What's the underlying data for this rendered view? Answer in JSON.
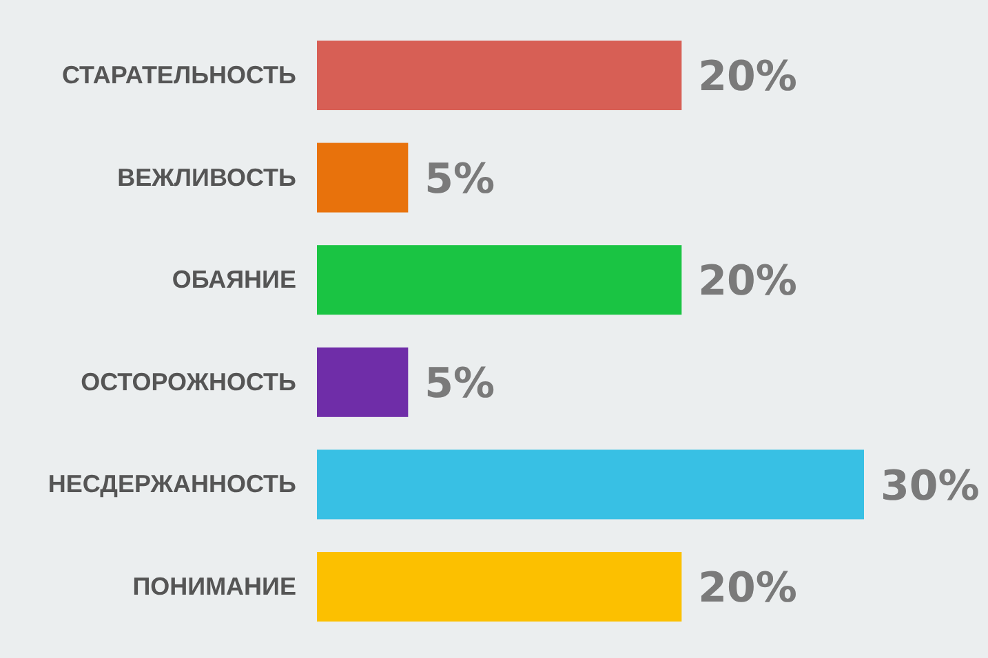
{
  "chart_data": {
    "type": "bar",
    "orientation": "horizontal",
    "categories": [
      "СТАРАТЕЛЬНОСТЬ",
      "ВЕЖЛИВОСТЬ",
      "ОБАЯНИЕ",
      "ОСТОРОЖНОСТЬ",
      "НЕСДЕРЖАННОСТЬ",
      "ПОНИМАНИЕ"
    ],
    "values": [
      20,
      5,
      20,
      5,
      30,
      20
    ],
    "colors": [
      "#d75f55",
      "#e8720c",
      "#1ac443",
      "#6f2da8",
      "#38c0e4",
      "#fcc000"
    ],
    "value_labels": [
      "20%",
      "5%",
      "20%",
      "5%",
      "30%",
      "20%"
    ],
    "xlim": [
      0,
      30
    ]
  }
}
